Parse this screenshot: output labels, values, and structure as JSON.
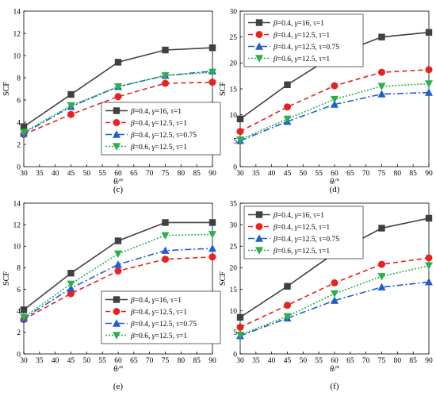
{
  "legend_entries": [
    {
      "beta": "0.4",
      "gamma": "16",
      "tau": "1"
    },
    {
      "beta": "0.4",
      "gamma": "12.5",
      "tau": "1"
    },
    {
      "beta": "0.4",
      "gamma": "12.5",
      "tau": "0.75"
    },
    {
      "beta": "0.6",
      "gamma": "12.5",
      "tau": "1"
    }
  ],
  "legend_symbols": {
    "beta": "β",
    "gamma": "γ",
    "tau": "τ"
  },
  "series_styles": [
    {
      "color": "#404040",
      "marker": "square",
      "dash": ""
    },
    {
      "color": "#e8231f",
      "marker": "circle",
      "dash": "6,4"
    },
    {
      "color": "#1f5fd6",
      "marker": "triangle-up",
      "dash": "8,3,2,3"
    },
    {
      "color": "#2bb14b",
      "marker": "triangle-down",
      "dash": "2,2"
    }
  ],
  "chart_data": [
    {
      "type": "line",
      "panel_label": "(c)",
      "xlabel": "θ/°",
      "ylabel": "SCF",
      "xlim": [
        30,
        90
      ],
      "ylim": [
        0,
        14
      ],
      "xticks": [
        30,
        35,
        40,
        45,
        50,
        55,
        60,
        65,
        70,
        75,
        80,
        85,
        90
      ],
      "yticks": [
        0,
        2,
        4,
        6,
        8,
        10,
        12,
        14
      ],
      "legend_position": "bottom-right",
      "x": [
        30,
        45,
        60,
        75,
        90
      ],
      "series": [
        {
          "values": [
            3.6,
            6.5,
            9.4,
            10.5,
            10.7
          ]
        },
        {
          "values": [
            2.9,
            4.7,
            6.3,
            7.5,
            7.6
          ]
        },
        {
          "values": [
            3.0,
            5.4,
            7.2,
            8.2,
            8.6
          ]
        },
        {
          "values": [
            3.1,
            5.5,
            7.2,
            8.2,
            8.5
          ]
        }
      ]
    },
    {
      "type": "line",
      "panel_label": "(d)",
      "xlabel": "θ/°",
      "ylabel": "SCF",
      "xlim": [
        30,
        90
      ],
      "ylim": [
        0,
        30
      ],
      "xticks": [
        30,
        35,
        40,
        45,
        50,
        55,
        60,
        65,
        70,
        75,
        80,
        85,
        90
      ],
      "yticks": [
        0,
        5,
        10,
        15,
        20,
        25,
        30
      ],
      "legend_position": "top-left",
      "x": [
        30,
        45,
        60,
        75,
        90
      ],
      "series": [
        {
          "values": [
            9.2,
            15.8,
            21.5,
            25.0,
            25.9
          ]
        },
        {
          "values": [
            6.8,
            11.5,
            15.6,
            18.2,
            18.7
          ]
        },
        {
          "values": [
            5.0,
            8.7,
            12.0,
            14.0,
            14.3
          ]
        },
        {
          "values": [
            5.2,
            9.2,
            13.0,
            15.5,
            16.0
          ]
        }
      ]
    },
    {
      "type": "line",
      "panel_label": "(e)",
      "xlabel": "θ/°",
      "ylabel": "SCF",
      "xlim": [
        30,
        90
      ],
      "ylim": [
        0,
        14
      ],
      "xticks": [
        30,
        35,
        40,
        45,
        50,
        55,
        60,
        65,
        70,
        75,
        80,
        85,
        90
      ],
      "yticks": [
        0,
        2,
        4,
        6,
        8,
        10,
        12,
        14
      ],
      "legend_position": "bottom-right",
      "x": [
        30,
        45,
        60,
        75,
        90
      ],
      "series": [
        {
          "values": [
            4.1,
            7.5,
            10.5,
            12.2,
            12.2
          ]
        },
        {
          "values": [
            3.2,
            5.6,
            7.7,
            8.8,
            9.0
          ]
        },
        {
          "values": [
            3.3,
            6.1,
            8.3,
            9.6,
            9.8
          ]
        },
        {
          "values": [
            3.4,
            6.5,
            9.3,
            11.0,
            11.1
          ]
        }
      ]
    },
    {
      "type": "line",
      "panel_label": "(f)",
      "xlabel": "θ/°",
      "ylabel": "SCF",
      "xlim": [
        30,
        90
      ],
      "ylim": [
        0,
        35
      ],
      "xticks": [
        30,
        35,
        40,
        45,
        50,
        55,
        60,
        65,
        70,
        75,
        80,
        85,
        90
      ],
      "yticks": [
        0,
        5,
        10,
        15,
        20,
        25,
        30,
        35
      ],
      "legend_position": "top-left",
      "x": [
        30,
        45,
        60,
        75,
        90
      ],
      "series": [
        {
          "values": [
            8.5,
            15.7,
            23.4,
            29.2,
            31.5
          ]
        },
        {
          "values": [
            6.2,
            11.3,
            16.5,
            20.8,
            22.3
          ]
        },
        {
          "values": [
            4.2,
            8.3,
            12.4,
            15.5,
            16.7
          ]
        },
        {
          "values": [
            4.4,
            8.7,
            14.0,
            18.0,
            20.5
          ]
        }
      ]
    }
  ]
}
